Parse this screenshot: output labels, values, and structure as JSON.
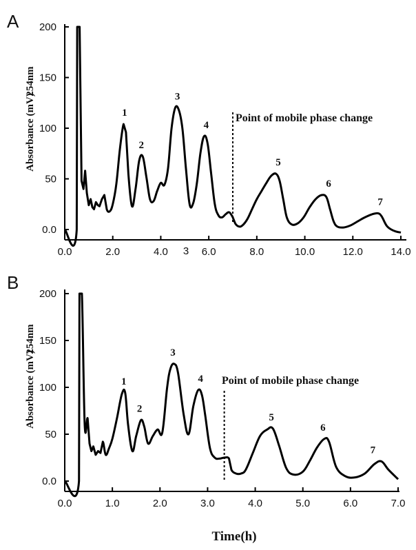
{
  "chart_data": [
    {
      "panel": "A",
      "type": "line",
      "ylabel": "Absorbance (mV)",
      "ylabel_unit": "254nm",
      "xlabel": "",
      "xlim": [
        0,
        14
      ],
      "ylim": [
        0,
        200
      ],
      "xticks": [
        "0.0",
        "2.0",
        "4.0",
        "6.0",
        "8.0",
        "10.0",
        "12.0",
        "14.0"
      ],
      "yticks": [
        "0.0",
        "50",
        "100",
        "150",
        "200"
      ],
      "annotation": "Point of mobile phase change",
      "phase_change_x": 7.0,
      "stray_label": "3",
      "series": [
        {
          "x": [
            0.0,
            0.5,
            0.52,
            0.62,
            0.7,
            0.78,
            0.85,
            0.92,
            1.0,
            1.08,
            1.15,
            1.22,
            1.3,
            1.38,
            1.45,
            1.55,
            1.65,
            1.75,
            1.88,
            2.0,
            2.15,
            2.3,
            2.45,
            2.55,
            2.65,
            2.8,
            2.95,
            3.1,
            3.25,
            3.4,
            3.55,
            3.7,
            3.85,
            4.0,
            4.15,
            4.3,
            4.45,
            4.6,
            4.75,
            4.9,
            5.05,
            5.2,
            5.35,
            5.5,
            5.65,
            5.8,
            5.95,
            6.1,
            6.25,
            6.4,
            6.55,
            6.7,
            6.85,
            7.0,
            7.1,
            7.25,
            7.4,
            7.6,
            7.8,
            8.0,
            8.2,
            8.4,
            8.6,
            8.8,
            8.95,
            9.1,
            9.25,
            9.45,
            9.7,
            9.95,
            10.2,
            10.45,
            10.7,
            10.9,
            11.05,
            11.2,
            11.35,
            11.6,
            11.9,
            12.2,
            12.5,
            12.8,
            13.05,
            13.2,
            13.4,
            13.6,
            13.8,
            14.0
          ],
          "y": [
            0,
            0,
            200,
            200,
            48,
            40,
            58,
            36,
            24,
            30,
            22,
            20,
            27,
            24,
            23,
            30,
            34,
            20,
            18,
            25,
            45,
            80,
            104,
            96,
            55,
            23,
            40,
            68,
            72,
            52,
            30,
            28,
            38,
            46,
            44,
            60,
            100,
            120,
            118,
            100,
            60,
            25,
            26,
            45,
            75,
            92,
            85,
            55,
            25,
            14,
            12,
            15,
            17,
            12,
            6,
            3,
            4,
            10,
            20,
            30,
            38,
            46,
            53,
            55,
            48,
            30,
            12,
            5,
            6,
            12,
            22,
            30,
            34,
            32,
            20,
            8,
            3,
            2,
            4,
            8,
            12,
            15,
            16,
            13,
            4,
            0,
            -2,
            -3
          ]
        }
      ],
      "peak_labels": [
        {
          "label": "1",
          "x": 2.55,
          "y": 104
        },
        {
          "label": "2",
          "x": 3.25,
          "y": 72
        },
        {
          "label": "3",
          "x": 4.75,
          "y": 120
        },
        {
          "label": "4",
          "x": 5.95,
          "y": 92
        },
        {
          "label": "5",
          "x": 8.95,
          "y": 55
        },
        {
          "label": "6",
          "x": 11.05,
          "y": 34
        },
        {
          "label": "7",
          "x": 13.2,
          "y": 16
        }
      ]
    },
    {
      "panel": "B",
      "type": "line",
      "ylabel": "Absorbance (mV)",
      "ylabel_unit": "254nm",
      "xlabel": "Time(h)",
      "xlim": [
        0,
        7
      ],
      "ylim": [
        0,
        200
      ],
      "xticks": [
        "0.0",
        "1.0",
        "2.0",
        "3.0",
        "4.0",
        "5.0",
        "6.0",
        "7.0"
      ],
      "yticks": [
        "0.0",
        "50",
        "100",
        "150",
        "200"
      ],
      "annotation": "Point of mobile phase change",
      "phase_change_x": 3.35,
      "series": [
        {
          "x": [
            0.0,
            0.3,
            0.31,
            0.36,
            0.42,
            0.48,
            0.52,
            0.56,
            0.6,
            0.65,
            0.7,
            0.75,
            0.8,
            0.86,
            0.93,
            1.0,
            1.1,
            1.2,
            1.27,
            1.33,
            1.42,
            1.5,
            1.6,
            1.67,
            1.75,
            1.85,
            1.95,
            2.05,
            2.15,
            2.22,
            2.3,
            2.38,
            2.5,
            2.6,
            2.7,
            2.8,
            2.88,
            2.95,
            3.05,
            3.15,
            3.25,
            3.35,
            3.45,
            3.5,
            3.6,
            3.7,
            3.8,
            3.95,
            4.1,
            4.25,
            4.37,
            4.5,
            4.65,
            4.8,
            5.0,
            5.15,
            5.3,
            5.45,
            5.55,
            5.7,
            5.9,
            6.1,
            6.3,
            6.5,
            6.65,
            6.8,
            7.0
          ],
          "y": [
            0,
            0,
            200,
            200,
            60,
            67,
            40,
            32,
            37,
            28,
            32,
            30,
            42,
            28,
            35,
            45,
            68,
            93,
            94,
            60,
            32,
            48,
            65,
            58,
            40,
            48,
            55,
            52,
            100,
            120,
            125,
            115,
            70,
            50,
            80,
            97,
            92,
            70,
            35,
            25,
            24,
            25,
            24,
            12,
            8,
            8,
            12,
            30,
            48,
            55,
            56,
            38,
            14,
            7,
            10,
            22,
            36,
            45,
            42,
            15,
            5,
            4,
            8,
            18,
            21,
            12,
            2
          ]
        }
      ],
      "peak_labels": [
        {
          "label": "1",
          "x": 1.27,
          "y": 94
        },
        {
          "label": "2",
          "x": 1.6,
          "y": 65
        },
        {
          "label": "3",
          "x": 2.3,
          "y": 125
        },
        {
          "label": "4",
          "x": 2.88,
          "y": 97
        },
        {
          "label": "5",
          "x": 4.37,
          "y": 56
        },
        {
          "label": "6",
          "x": 5.45,
          "y": 45
        },
        {
          "label": "7",
          "x": 6.5,
          "y": 21
        }
      ]
    }
  ]
}
